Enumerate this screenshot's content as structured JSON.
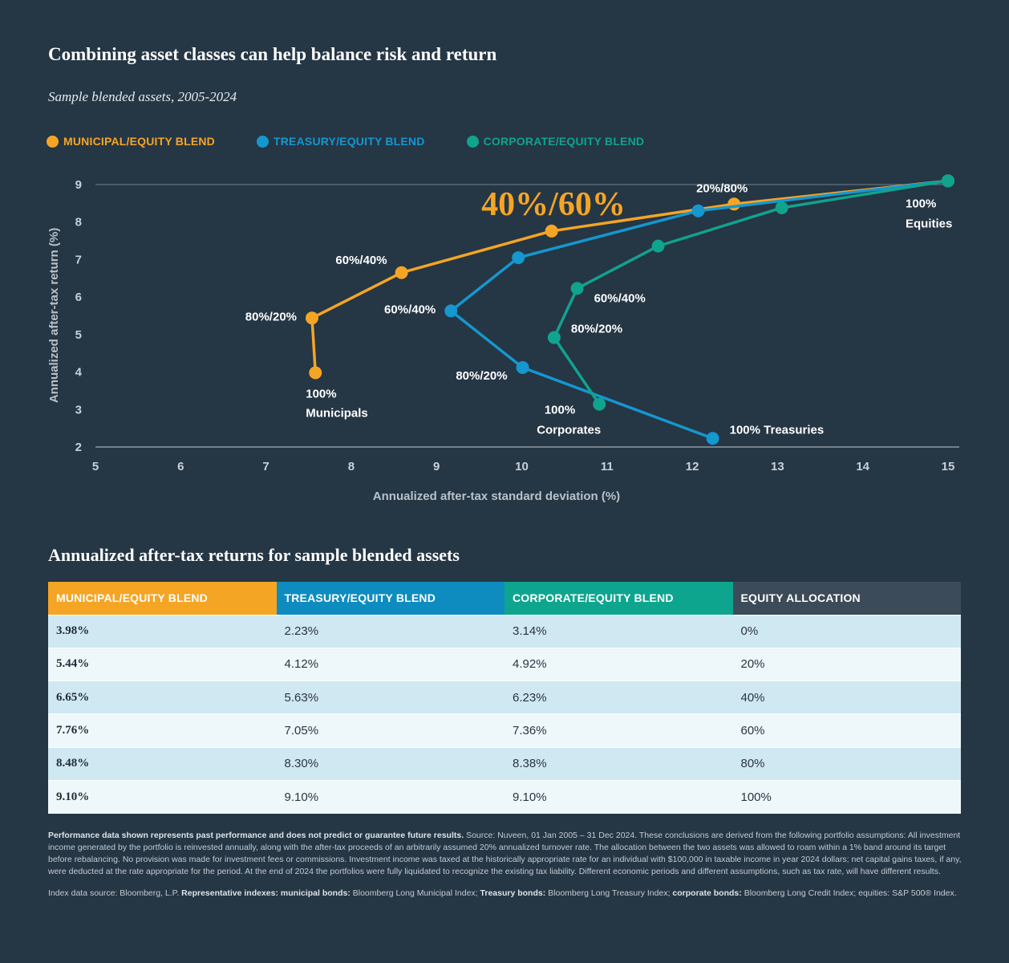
{
  "title": "Combining asset classes can help balance risk and return",
  "subtitle": "Sample blended assets, 2005-2024",
  "colors": {
    "municipal": "#f5a524",
    "treasury": "#1597cf",
    "corporate": "#10a38e",
    "background": "#253645",
    "equity_header": "#3c4b59"
  },
  "chart_data": {
    "type": "line",
    "xlabel": "Annualized after-tax standard deviation (%)",
    "ylabel": "Annualized after-tax return (%)",
    "xlim": [
      5,
      15
    ],
    "ylim": [
      2,
      9
    ],
    "xticks": [
      5,
      6,
      7,
      8,
      9,
      10,
      11,
      12,
      13,
      14,
      15
    ],
    "yticks": [
      2,
      3,
      4,
      5,
      6,
      7,
      8,
      9
    ],
    "legend_position": "top-left",
    "highlight_label": "40%/60%",
    "series": [
      {
        "name": "MUNICIPAL/EQUITY BLEND",
        "color": "#f5a524",
        "points": [
          {
            "x": 7.58,
            "y": 3.98
          },
          {
            "x": 7.54,
            "y": 5.44
          },
          {
            "x": 8.59,
            "y": 6.65
          },
          {
            "x": 10.35,
            "y": 7.76
          },
          {
            "x": 12.49,
            "y": 8.48
          },
          {
            "x": 15.0,
            "y": 9.1
          }
        ]
      },
      {
        "name": "TREASURY/EQUITY BLEND",
        "color": "#1597cf",
        "points": [
          {
            "x": 12.24,
            "y": 2.23
          },
          {
            "x": 10.01,
            "y": 4.12
          },
          {
            "x": 9.17,
            "y": 5.63
          },
          {
            "x": 9.96,
            "y": 7.05
          },
          {
            "x": 12.07,
            "y": 8.3
          },
          {
            "x": 15.0,
            "y": 9.1
          }
        ]
      },
      {
        "name": "CORPORATE/EQUITY BLEND",
        "color": "#10a38e",
        "points": [
          {
            "x": 10.91,
            "y": 3.14
          },
          {
            "x": 10.38,
            "y": 4.92
          },
          {
            "x": 10.65,
            "y": 6.23
          },
          {
            "x": 11.6,
            "y": 7.36
          },
          {
            "x": 13.05,
            "y": 8.38
          },
          {
            "x": 15.0,
            "y": 9.1
          }
        ]
      }
    ],
    "annotations": [
      {
        "text": "100%",
        "x": 7.58,
        "y": 3.98,
        "pos": "below1"
      },
      {
        "text": "Municipals",
        "x": 7.58,
        "y": 3.98,
        "pos": "below2"
      },
      {
        "text": "80%/20%",
        "x": 7.54,
        "y": 5.44,
        "pos": "left"
      },
      {
        "text": "60%/40%",
        "x": 8.59,
        "y": 6.65,
        "pos": "upleft"
      },
      {
        "text": "20%/80%",
        "x": 12.49,
        "y": 8.48,
        "pos": "above"
      },
      {
        "text": "100%",
        "x": 15.0,
        "y": 9.1,
        "pos": "below1"
      },
      {
        "text": "Equities",
        "x": 15.0,
        "y": 9.1,
        "pos": "below2"
      },
      {
        "text": "60%/40%",
        "x": 9.17,
        "y": 5.63,
        "pos": "left"
      },
      {
        "text": "80%/20%",
        "x": 10.01,
        "y": 4.12,
        "pos": "downleft"
      },
      {
        "text": "100% Treasuries",
        "x": 12.24,
        "y": 2.23,
        "pos": "right"
      },
      {
        "text": "60%/40%",
        "x": 10.65,
        "y": 6.23,
        "pos": "downright"
      },
      {
        "text": "80%/20%",
        "x": 10.38,
        "y": 4.92,
        "pos": "right"
      },
      {
        "text": "100%",
        "x": 10.91,
        "y": 3.14,
        "pos": "downleft1"
      },
      {
        "text": "Corporates",
        "x": 10.91,
        "y": 3.14,
        "pos": "downleft2"
      }
    ]
  },
  "table": {
    "title": "Annualized after-tax returns for sample blended assets",
    "headers": [
      "MUNICIPAL/EQUITY BLEND",
      "TREASURY/EQUITY BLEND",
      "CORPORATE/EQUITY BLEND",
      "EQUITY ALLOCATION"
    ],
    "rows": [
      [
        "3.98%",
        "2.23%",
        "3.14%",
        "0%"
      ],
      [
        "5.44%",
        "4.12%",
        "4.92%",
        "20%"
      ],
      [
        "6.65%",
        "5.63%",
        "6.23%",
        "40%"
      ],
      [
        "7.76%",
        "7.05%",
        "7.36%",
        "60%"
      ],
      [
        "8.48%",
        "8.30%",
        "8.38%",
        "80%"
      ],
      [
        "9.10%",
        "9.10%",
        "9.10%",
        "100%"
      ]
    ]
  },
  "footnote": {
    "bold": "Performance data shown represents past performance and does not predict or guarantee future results.",
    "text": "Source: Nuveen, 01 Jan 2005 – 31 Dec 2024. These conclusions are derived from the following portfolio assumptions: All investment income generated by the portfolio is reinvested annually, along with the after-tax proceeds of an arbitrarily assumed 20% annualized turnover rate. The allocation between the two assets was allowed to roam within a 1% band around its target before rebalancing. No provision was made for investment fees or commissions. Investment income was taxed at the historically appropriate rate for an individual with $100,000 in taxable income in year 2024 dollars; net capital gains taxes, if any, were deducted at the rate appropriate for the period. At the end of 2024 the portfolios were fully liquidated to recognize the existing tax liability. Different economic periods and different assumptions, such as tax rate, will have different results."
  },
  "sources": {
    "prefix": "Index data source: Bloomberg, L.P.",
    "rep_label": "Representative indexes:",
    "muni_label": "municipal bonds:",
    "muni_text": "Bloomberg Long Municipal Index;",
    "treas_label": "Treasury bonds:",
    "treas_text": "Bloomberg Long Treasury Index;",
    "corp_label": "corporate bonds:",
    "corp_text": "Bloomberg Long Credit Index; equities: S&P 500® Index."
  }
}
